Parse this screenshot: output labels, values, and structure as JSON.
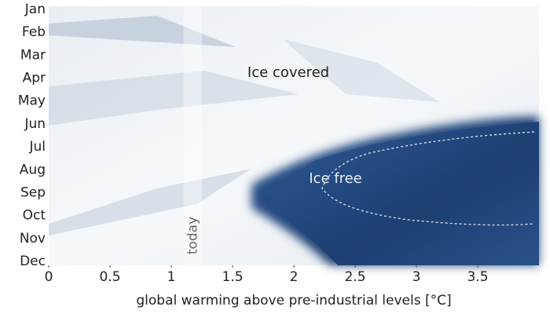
{
  "chart_data": {
    "type": "region-map",
    "x_label": "global warming above pre-industrial levels [°C]",
    "categories": [
      "Jan",
      "Feb",
      "Mar",
      "Apr",
      "May",
      "Jun",
      "Jul",
      "Aug",
      "Sep",
      "Oct",
      "Nov",
      "Dec"
    ],
    "xlim": [
      0,
      4
    ],
    "xticks": [
      0,
      0.5,
      1.0,
      1.5,
      2,
      2.5,
      3,
      3.5
    ],
    "today": {
      "label": "today",
      "range": [
        1.1,
        1.25
      ]
    },
    "annotations": [
      "Ice covered",
      "Ice free"
    ]
  }
}
